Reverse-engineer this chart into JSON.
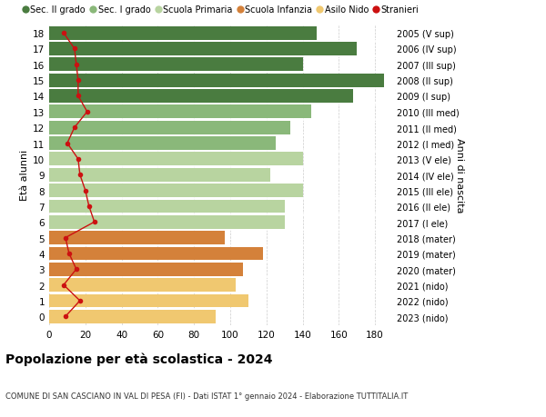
{
  "ages": [
    18,
    17,
    16,
    15,
    14,
    13,
    12,
    11,
    10,
    9,
    8,
    7,
    6,
    5,
    4,
    3,
    2,
    1,
    0
  ],
  "right_labels": [
    "2005 (V sup)",
    "2006 (IV sup)",
    "2007 (III sup)",
    "2008 (II sup)",
    "2009 (I sup)",
    "2010 (III med)",
    "2011 (II med)",
    "2012 (I med)",
    "2013 (V ele)",
    "2014 (IV ele)",
    "2015 (III ele)",
    "2016 (II ele)",
    "2017 (I ele)",
    "2018 (mater)",
    "2019 (mater)",
    "2020 (mater)",
    "2021 (nido)",
    "2022 (nido)",
    "2023 (nido)"
  ],
  "bar_values": [
    148,
    170,
    140,
    185,
    168,
    145,
    133,
    125,
    140,
    122,
    140,
    130,
    130,
    97,
    118,
    107,
    103,
    110,
    92
  ],
  "stranieri": [
    8,
    14,
    15,
    16,
    16,
    21,
    14,
    10,
    16,
    17,
    20,
    22,
    25,
    9,
    11,
    15,
    8,
    17,
    9
  ],
  "bar_colors": {
    "sec2": "#4a7c40",
    "sec1": "#8ab87a",
    "primaria": "#b8d4a0",
    "infanzia": "#d4813a",
    "nido": "#f0c870"
  },
  "color_ranges": {
    "sec2": [
      14,
      18
    ],
    "sec1": [
      11,
      13
    ],
    "primaria": [
      6,
      10
    ],
    "infanzia": [
      3,
      5
    ],
    "nido": [
      0,
      2
    ]
  },
  "stranieri_color": "#cc1111",
  "bg_color": "#ffffff",
  "grid_color": "#cccccc",
  "title": "Popolazione per età scolastica - 2024",
  "subtitle": "COMUNE DI SAN CASCIANO IN VAL DI PESA (FI) - Dati ISTAT 1° gennaio 2024 - Elaborazione TUTTITALIA.IT",
  "ylabel": "Età alunni",
  "ylabel2": "Anni di nascita",
  "xlim": [
    0,
    190
  ],
  "xticks": [
    0,
    20,
    40,
    60,
    80,
    100,
    120,
    140,
    160,
    180
  ],
  "legend_entries": [
    "Sec. II grado",
    "Sec. I grado",
    "Scuola Primaria",
    "Scuola Infanzia",
    "Asilo Nido",
    "Stranieri"
  ]
}
